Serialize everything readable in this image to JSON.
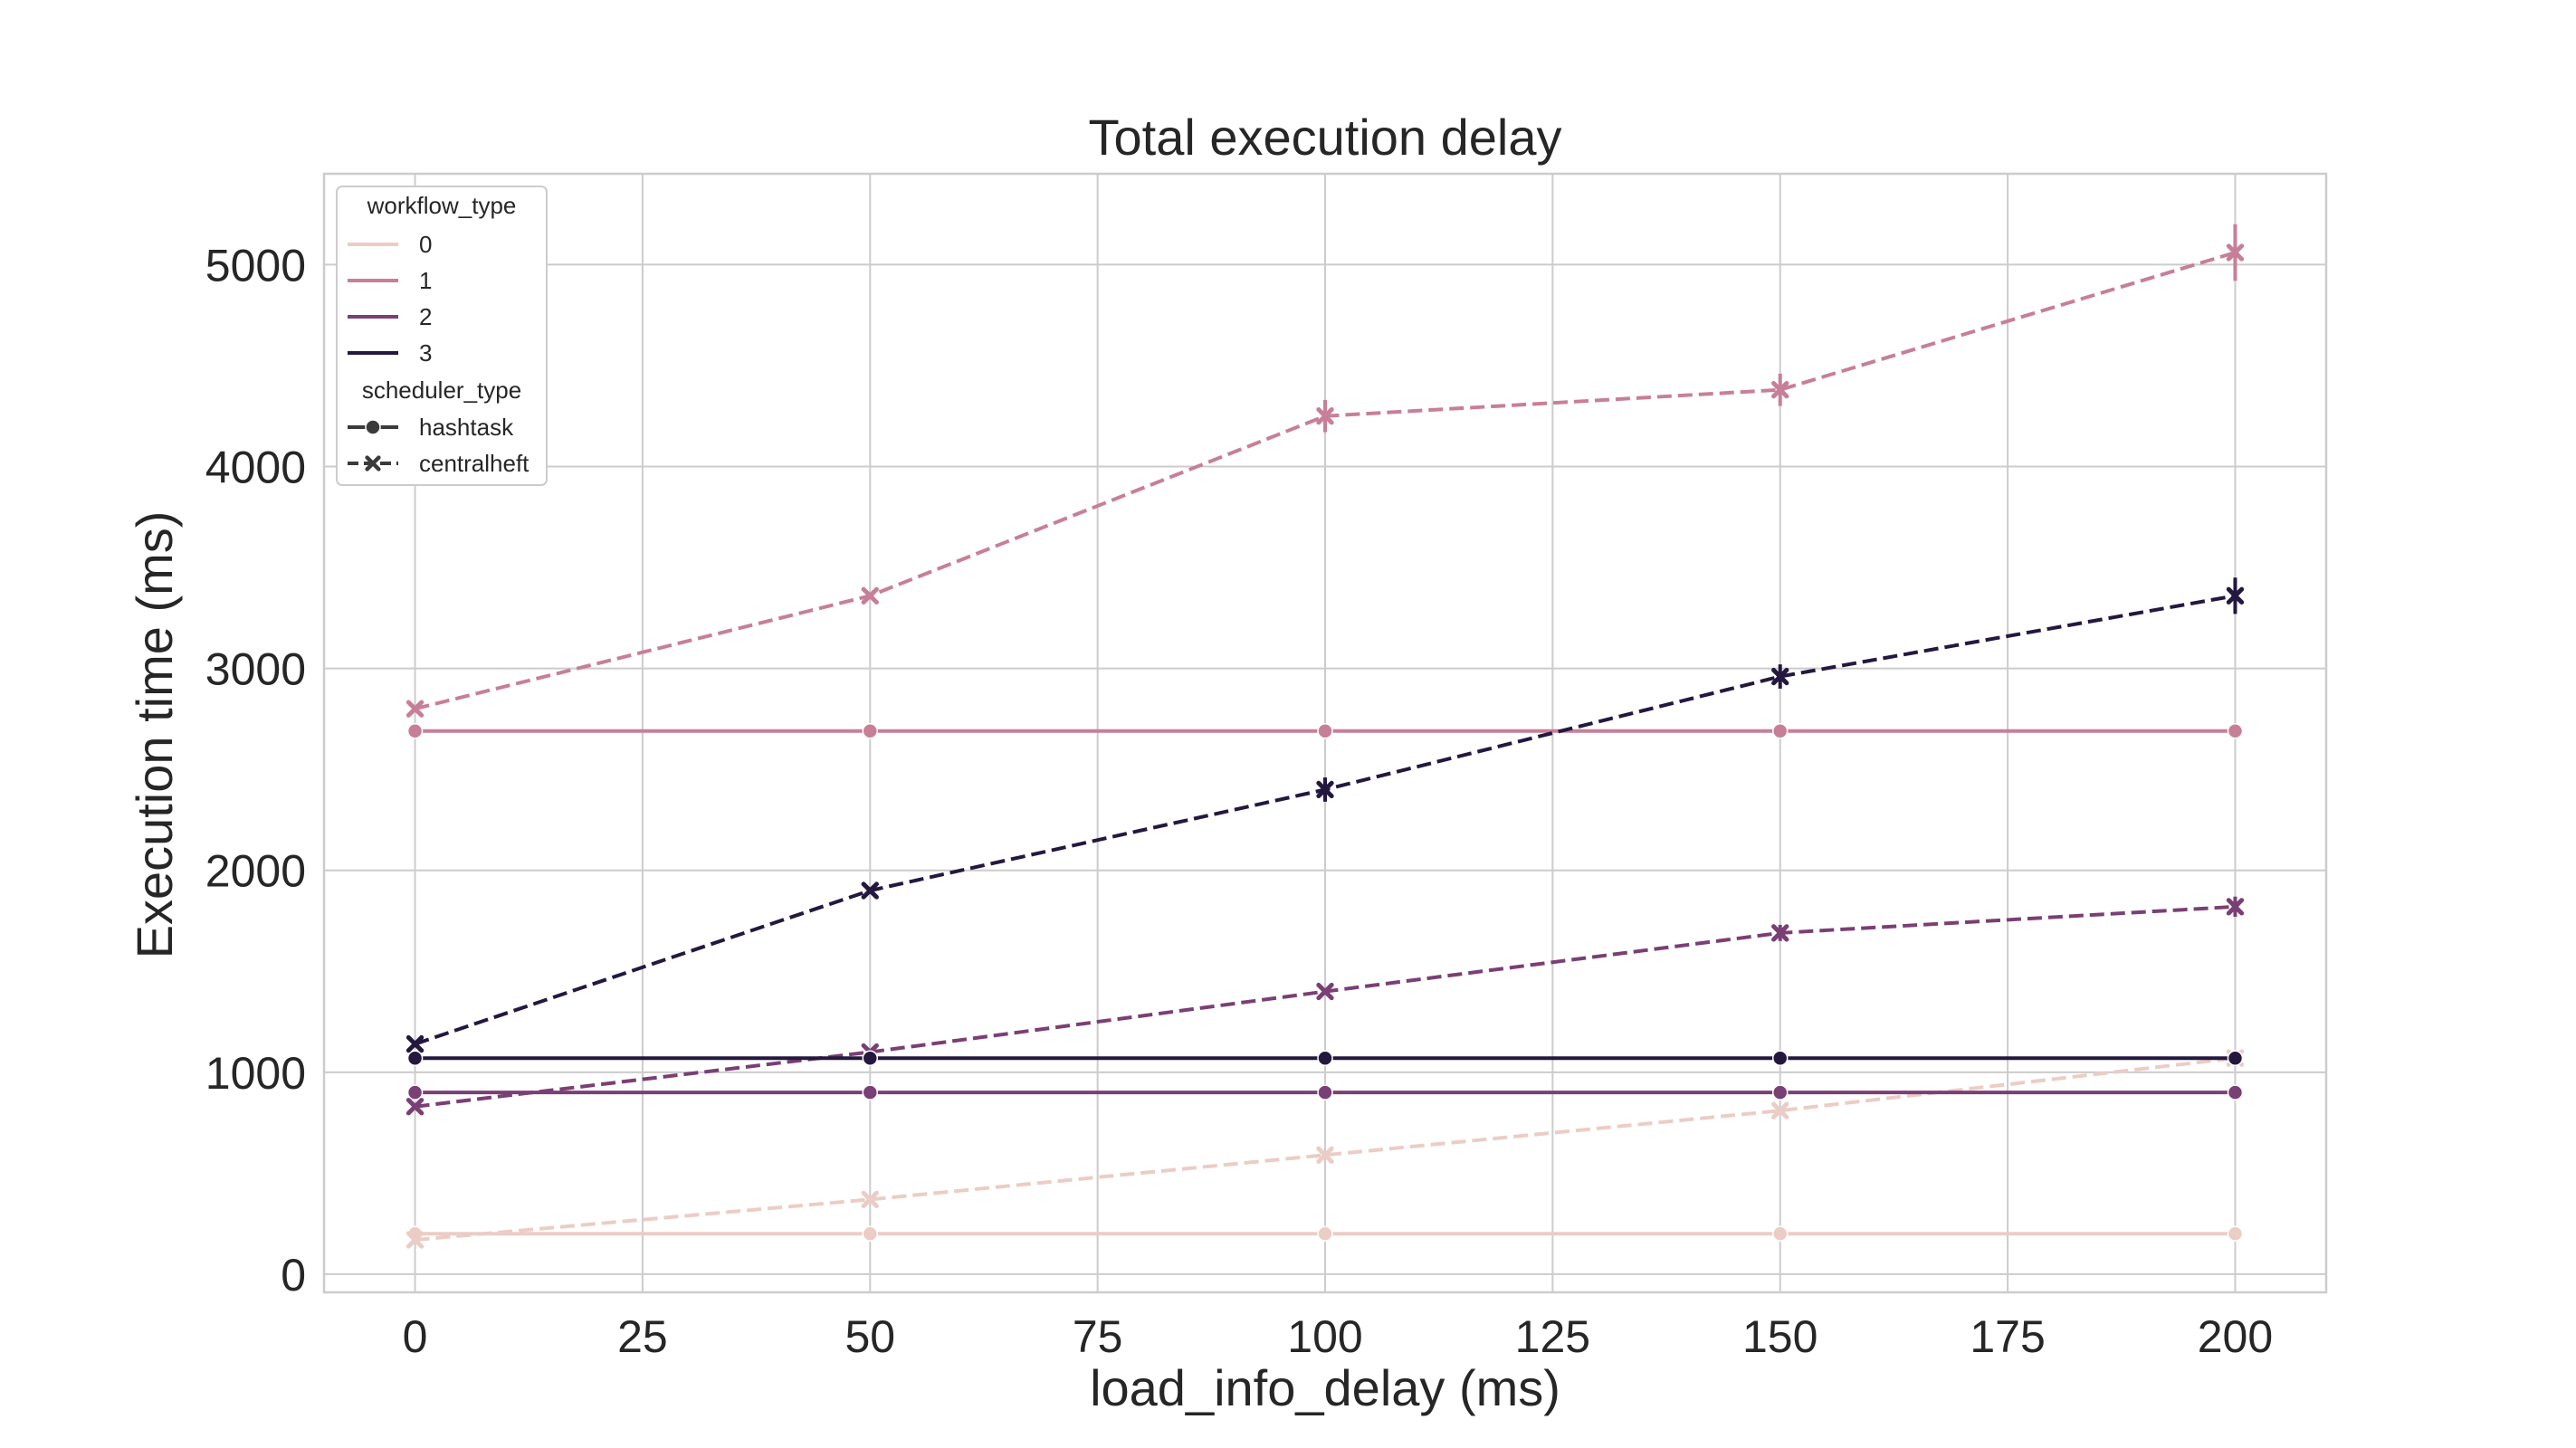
{
  "chart_data": {
    "type": "line",
    "title": "Total execution delay",
    "xlabel": "load_info_delay (ms)",
    "ylabel": "Execution time (ms)",
    "xlim": [
      -10,
      210
    ],
    "ylim": [
      -90,
      5450
    ],
    "xticks": [
      0,
      25,
      50,
      75,
      100,
      125,
      150,
      175,
      200
    ],
    "yticks": [
      0,
      1000,
      2000,
      3000,
      4000,
      5000
    ],
    "grid": true,
    "x": [
      0,
      50,
      100,
      150,
      200
    ],
    "legend": {
      "placement": "top-left",
      "hue_title": "workflow_type",
      "style_title": "scheduler_type",
      "hue_entries": [
        {
          "label": "0",
          "color": "#ebcdc6"
        },
        {
          "label": "1",
          "color": "#c77f98"
        },
        {
          "label": "2",
          "color": "#7a3f74"
        },
        {
          "label": "3",
          "color": "#24183f"
        }
      ],
      "style_entries": [
        {
          "label": "hashtask",
          "dash": "solid",
          "marker": "circle"
        },
        {
          "label": "centralheft",
          "dash": "dashed",
          "marker": "x"
        }
      ]
    },
    "series": [
      {
        "workflow_type": "0",
        "scheduler_type": "hashtask",
        "color": "#ebcdc6",
        "values": [
          200,
          200,
          200,
          200,
          200
        ]
      },
      {
        "workflow_type": "0",
        "scheduler_type": "centralheft",
        "color": "#ebcdc6",
        "values": [
          170,
          370,
          590,
          810,
          1070
        ]
      },
      {
        "workflow_type": "1",
        "scheduler_type": "hashtask",
        "color": "#c77f98",
        "values": [
          2690,
          2690,
          2690,
          2690,
          2690
        ]
      },
      {
        "workflow_type": "1",
        "scheduler_type": "centralheft",
        "color": "#c77f98",
        "values": [
          2800,
          3360,
          4250,
          4380,
          5060
        ],
        "err": [
          0,
          0,
          80,
          80,
          140
        ]
      },
      {
        "workflow_type": "2",
        "scheduler_type": "hashtask",
        "color": "#7a3f74",
        "values": [
          900,
          900,
          900,
          900,
          900
        ]
      },
      {
        "workflow_type": "2",
        "scheduler_type": "centralheft",
        "color": "#7a3f74",
        "values": [
          830,
          1100,
          1400,
          1690,
          1820
        ],
        "err": [
          0,
          0,
          0,
          40,
          50
        ]
      },
      {
        "workflow_type": "3",
        "scheduler_type": "hashtask",
        "color": "#24183f",
        "values": [
          1070,
          1070,
          1070,
          1070,
          1070
        ]
      },
      {
        "workflow_type": "3",
        "scheduler_type": "centralheft",
        "color": "#24183f",
        "values": [
          1140,
          1900,
          2400,
          2960,
          3360
        ],
        "err": [
          0,
          0,
          60,
          60,
          90
        ]
      }
    ]
  }
}
